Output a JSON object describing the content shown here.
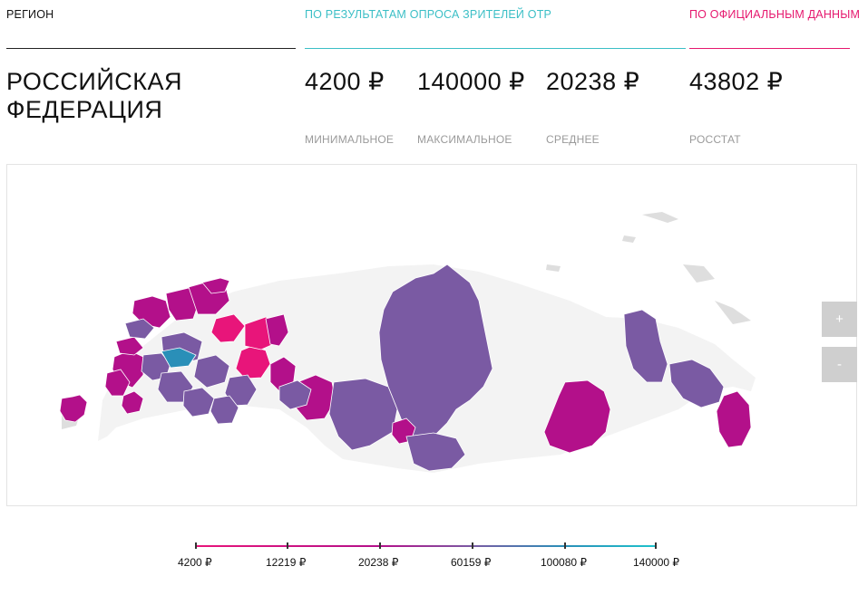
{
  "header": {
    "region_label": "РЕГИОН",
    "survey_label": "ПО РЕЗУЛЬТАТАМ ОПРОСА ЗРИТЕЛЕЙ ОТР",
    "official_label": "ПО ОФИЦИАЛЬНЫМ ДАННЫМ"
  },
  "region": {
    "name_line1": "РОССИЙСКАЯ",
    "name_line2": "ФЕДЕРАЦИЯ"
  },
  "stats": [
    {
      "value": "4200 ₽",
      "label": "МИНИМАЛЬНОЕ"
    },
    {
      "value": "140000 ₽",
      "label": "МАКСИМАЛЬНОЕ"
    },
    {
      "value": "20238 ₽",
      "label": "СРЕДНЕЕ"
    },
    {
      "value": "43802 ₽",
      "label": "РОССТАТ"
    }
  ],
  "zoom": {
    "plus": "+",
    "minus": "-"
  },
  "legend": {
    "ticks": [
      "4200 ₽",
      "12219 ₽",
      "20238 ₽",
      "60159 ₽",
      "100080 ₽",
      "140000 ₽"
    ]
  },
  "colors": {
    "survey_accent": "#3bbfc6",
    "official_accent": "#e6186e",
    "low": "#e8157a",
    "mid": "#b3108a",
    "avg": "#7a5aa3",
    "high": "#2a8fb8",
    "max": "#1fc2cc"
  }
}
